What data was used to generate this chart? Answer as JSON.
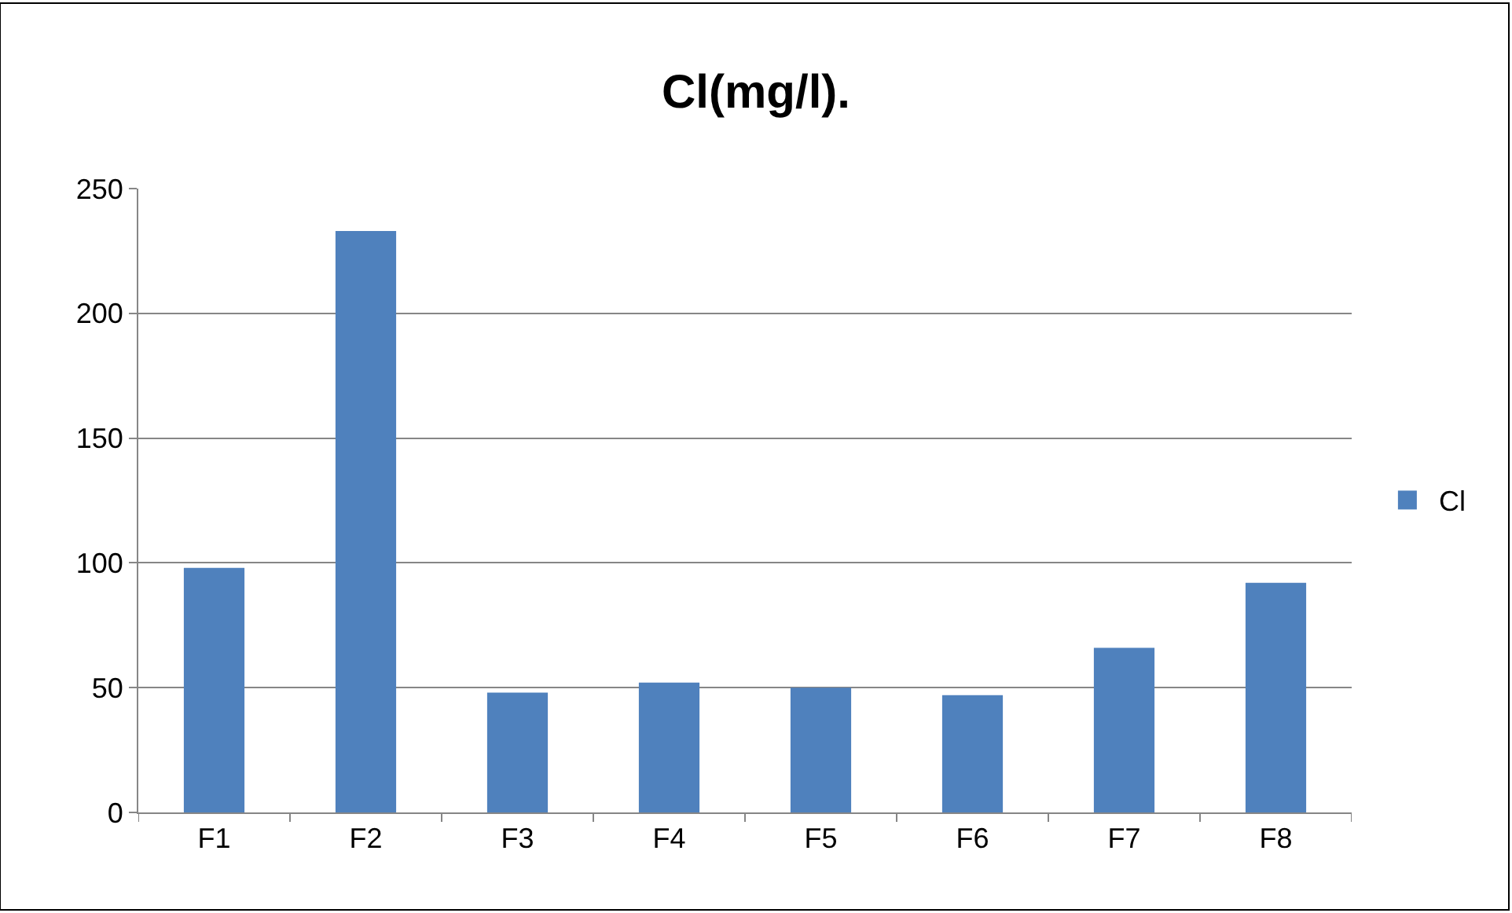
{
  "chart_data": {
    "type": "bar",
    "title": "Cl(mg/l).",
    "categories": [
      "F1",
      "F2",
      "F3",
      "F4",
      "F5",
      "F6",
      "F7",
      "F8"
    ],
    "series": [
      {
        "name": "Cl",
        "color": "#4f81bd",
        "values": [
          98,
          233,
          48,
          52,
          50,
          47,
          66,
          92
        ]
      }
    ],
    "ylim": [
      0,
      250
    ],
    "yticks": [
      0,
      50,
      100,
      150,
      200,
      250
    ],
    "grid": "y",
    "legend": "right"
  }
}
